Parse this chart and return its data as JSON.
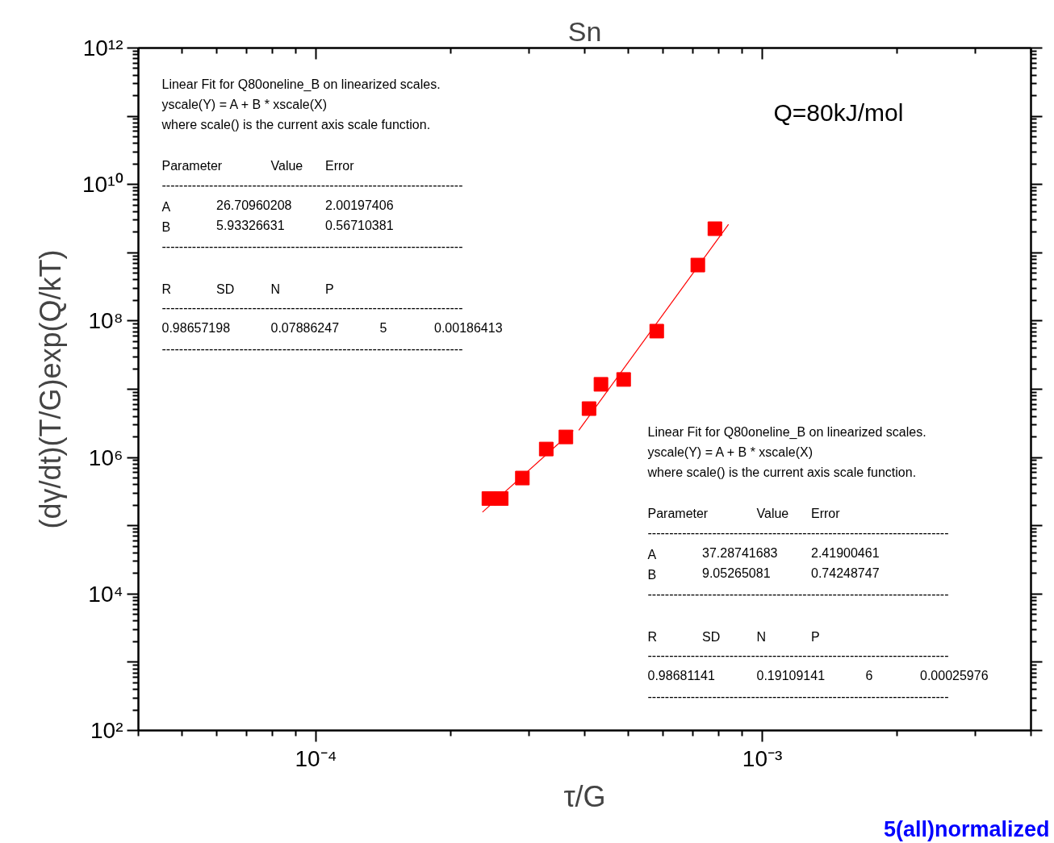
{
  "chart_data": {
    "type": "scatter",
    "title": "Sn",
    "xlabel": "τ/G",
    "ylabel": "(dγ/dt)(T/G)exp(Q/kT)",
    "log": "xy",
    "grid": false,
    "xlim": [
      4e-05,
      0.004
    ],
    "ylim": [
      100,
      1000000000000.0
    ],
    "xticks": [
      {
        "value": 0.0001,
        "label": "10⁻⁴"
      },
      {
        "value": 0.001,
        "label": "10⁻³"
      }
    ],
    "yticks": [
      {
        "value": 100.0,
        "label": "10²"
      },
      {
        "value": 1000.0,
        "label": null
      },
      {
        "value": 10000.0,
        "label": "10⁴"
      },
      {
        "value": 100000.0,
        "label": null
      },
      {
        "value": 1000000.0,
        "label": "10⁶"
      },
      {
        "value": 10000000.0,
        "label": null
      },
      {
        "value": 100000000.0,
        "label": "10⁸"
      },
      {
        "value": 1000000000.0,
        "label": null
      },
      {
        "value": 10000000000.0,
        "label": "10¹⁰"
      },
      {
        "value": 100000000000.0,
        "label": null
      },
      {
        "value": 1000000000000.0,
        "label": "10¹²"
      }
    ],
    "x": [
      0.000244,
      0.00026,
      0.00029,
      0.000328,
      0.000363,
      0.000409,
      0.000435,
      0.000489,
      0.00058,
      0.000717,
      0.000783
    ],
    "series": [
      {
        "marker": "square",
        "color": "#ff0000",
        "values": [
          250000.0,
          250000.0,
          500000.0,
          1330000.0,
          2000000.0,
          5200000.0,
          11800000.0,
          13900000.0,
          71000000.0,
          660000000.0,
          2250000000.0
        ]
      },
      {
        "type": "line",
        "color": "#ff0000",
        "line_style": "solid",
        "x": [
          0.000236,
          0.000377
        ],
        "values": [
          158000.0,
          2500000.0
        ]
      },
      {
        "type": "line",
        "color": "#ff0000",
        "line_style": "solid",
        "x": [
          0.000388,
          0.00084
        ],
        "values": [
          2500000.0,
          2600000000.0
        ]
      }
    ],
    "annotations": [
      "Linear Fit for Q80oneline_B on linearized scales.\nyscale(Y) = A + B * xscale(X)\nwhere scale() is the current axis scale function.\n\nParameter\t\tValue\tError\n----------------------------------------------------------------------\nA\t26.70960208\t\t2.00197406\nB\t5.93326631\t\t0.56710381\n----------------------------------------------------------------------\n\nR\tSD\tN\tP\n----------------------------------------------------------------------\n0.98657198\t\t0.07886247\t\t5\t0.00186413\n----------------------------------------------------------------------",
      "Linear Fit for Q80oneline_B on linearized scales.\nyscale(Y) = A + B * xscale(X)\nwhere scale() is the current axis scale function.\n\nParameter\t\tValue\tError\n----------------------------------------------------------------------\nA\t37.28741683\t\t2.41900461\nB\t9.05265081\t\t0.74248747\n----------------------------------------------------------------------\n\nR\tSD\tN\tP\n----------------------------------------------------------------------\n0.98681141\t\t0.19109141\t\t6\t0.00025976\n----------------------------------------------------------------------",
      "Q=80kJ/mol",
      "5(all)normalized"
    ]
  }
}
